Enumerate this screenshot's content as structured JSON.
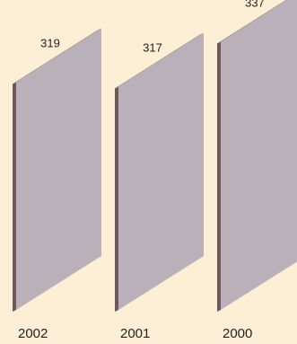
{
  "chart_data": {
    "type": "bar",
    "categories": [
      "2002",
      "2001",
      "2000"
    ],
    "values": [
      319,
      317,
      337
    ],
    "title": "",
    "xlabel": "",
    "ylabel": "",
    "grid": false,
    "legend": "none"
  },
  "colors": {
    "background": "#fcefd6",
    "bar_fill": "#b9b0b9",
    "bar_edge": "#70575a",
    "label_text": "#222222"
  }
}
